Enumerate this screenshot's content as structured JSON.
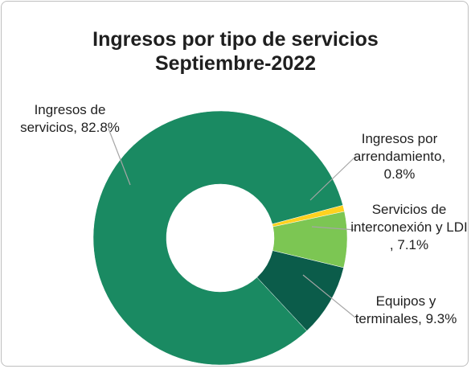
{
  "chart_data": {
    "type": "donut",
    "title": "Ingresos por tipo de servicios",
    "subtitle": "Septiembre-2022",
    "categories": [
      "Ingresos de servicios,",
      "Ingresos por arrendamiento,",
      "Servicios de interconexión y LDI ,",
      "Equipos y terminales,"
    ],
    "values": [
      82.8,
      0.8,
      7.1,
      9.3
    ],
    "value_labels": [
      "82.8%",
      "0.8%",
      "7.1%",
      "9.3%"
    ],
    "colors": [
      "#1a8a62",
      "#ffd21f",
      "#7cc653",
      "#0b5c4a"
    ]
  }
}
